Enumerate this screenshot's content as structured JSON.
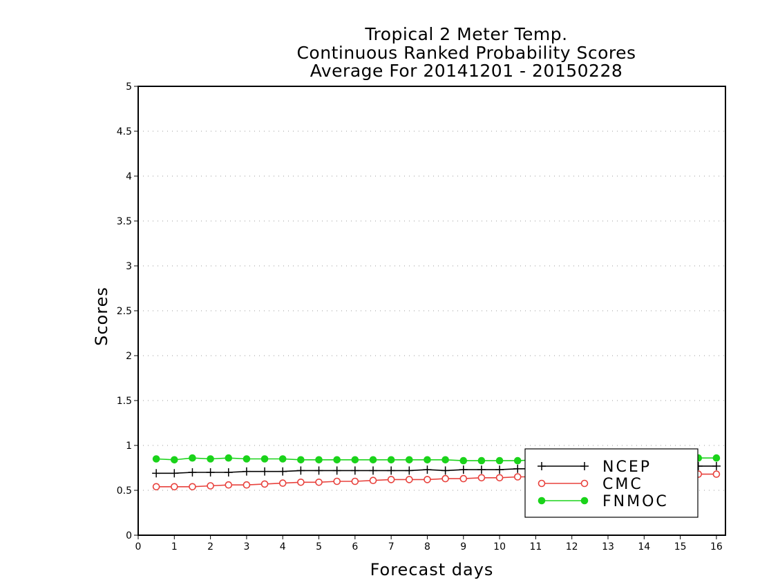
{
  "chart_data": {
    "type": "line",
    "title": [
      "Tropical 2 Meter Temp.",
      "Continuous Ranked Probability Scores",
      "Average For 20141201 - 20150228"
    ],
    "xlabel": "Forecast days",
    "ylabel": "Scores",
    "xlim": [
      0,
      16.25
    ],
    "ylim": [
      0,
      5
    ],
    "xticks": [
      "0",
      "1",
      "2",
      "3",
      "4",
      "5",
      "6",
      "7",
      "8",
      "9",
      "10",
      "11",
      "12",
      "13",
      "14",
      "15",
      "16"
    ],
    "yticks": [
      "0",
      "0.5",
      "1",
      "1.5",
      "2",
      "2.5",
      "3",
      "3.5",
      "4",
      "4.5",
      "5"
    ],
    "grid": "horizontal-dotted",
    "legend_position": "bottom-right",
    "x": [
      0.5,
      1,
      1.5,
      2,
      2.5,
      3,
      3.5,
      4,
      4.5,
      5,
      5.5,
      6,
      6.5,
      7,
      7.5,
      8,
      8.5,
      9,
      9.5,
      10,
      10.5,
      11,
      11.5,
      12,
      12.5,
      13,
      13.5,
      14,
      14.5,
      15,
      15.5,
      16
    ],
    "series": [
      {
        "name": "NCEP",
        "color": "#000000",
        "marker": "plus",
        "values": [
          0.69,
          0.69,
          0.7,
          0.7,
          0.7,
          0.71,
          0.71,
          0.71,
          0.72,
          0.72,
          0.72,
          0.72,
          0.72,
          0.72,
          0.72,
          0.73,
          0.72,
          0.73,
          0.73,
          0.73,
          0.74,
          0.74,
          0.74,
          0.74,
          0.75,
          0.75,
          0.75,
          0.75,
          0.76,
          0.76,
          0.77,
          0.77
        ]
      },
      {
        "name": "CMC",
        "color": "#e8413c",
        "marker": "open-circle",
        "values": [
          0.54,
          0.54,
          0.54,
          0.55,
          0.56,
          0.56,
          0.57,
          0.58,
          0.59,
          0.59,
          0.6,
          0.6,
          0.61,
          0.62,
          0.62,
          0.62,
          0.63,
          0.63,
          0.64,
          0.64,
          0.65,
          0.65,
          0.65,
          0.66,
          0.66,
          0.66,
          0.67,
          0.67,
          0.67,
          0.67,
          0.68,
          0.68
        ]
      },
      {
        "name": "FNMOC",
        "color": "#1ad31a",
        "marker": "filled-circle",
        "values": [
          0.85,
          0.84,
          0.86,
          0.85,
          0.86,
          0.85,
          0.85,
          0.85,
          0.84,
          0.84,
          0.84,
          0.84,
          0.84,
          0.84,
          0.84,
          0.84,
          0.84,
          0.83,
          0.83,
          0.83,
          0.83,
          0.84,
          0.84,
          0.84,
          0.84,
          0.85,
          0.85,
          0.85,
          0.85,
          0.86,
          0.86,
          0.86
        ]
      }
    ]
  }
}
